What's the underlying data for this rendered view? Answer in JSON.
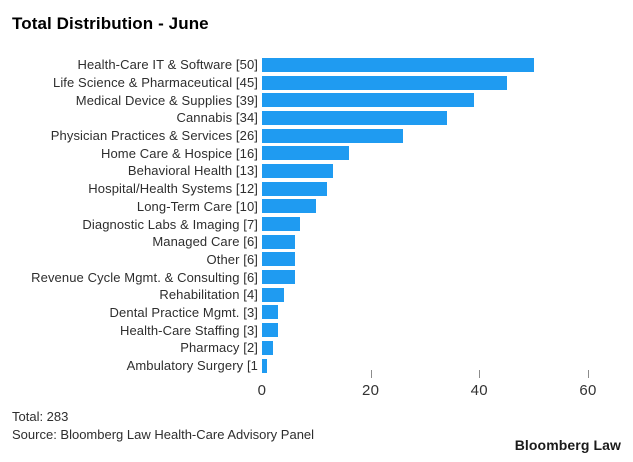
{
  "header": {
    "title": "Total Distribution - June"
  },
  "chart_data": {
    "type": "bar",
    "orientation": "horizontal",
    "title": "Total Distribution - June",
    "categories": [
      "Health-Care IT & Software [50]",
      "Life Science & Pharmaceutical [45]",
      "Medical Device & Supplies [39]",
      "Cannabis [34]",
      "Physician Practices & Services [26]",
      "Home Care & Hospice [16]",
      "Behavioral Health [13]",
      "Hospital/Health Systems [12]",
      "Long-Term Care [10]",
      "Diagnostic Labs & Imaging [7]",
      "Managed Care [6]",
      "Other [6]",
      "Revenue Cycle Mgmt. & Consulting [6]",
      "Rehabilitation [4]",
      "Dental Practice Mgmt. [3]",
      "Health-Care Staffing [3]",
      "Pharmacy [2]",
      "Ambulatory Surgery [1"
    ],
    "values": [
      50,
      45,
      39,
      34,
      26,
      16,
      13,
      12,
      10,
      7,
      6,
      6,
      6,
      4,
      3,
      3,
      2,
      1
    ],
    "xlabel": "",
    "ylabel": "",
    "xlim": [
      0,
      60
    ],
    "xticks": [
      0,
      20,
      40,
      60
    ],
    "grid": false,
    "legend": "none",
    "bar_color": "#1f9bf1"
  },
  "footer": {
    "total": "Total: 283",
    "source": "Source: Bloomberg Law Health-Care Advisory Panel",
    "brand": "Bloomberg Law"
  }
}
